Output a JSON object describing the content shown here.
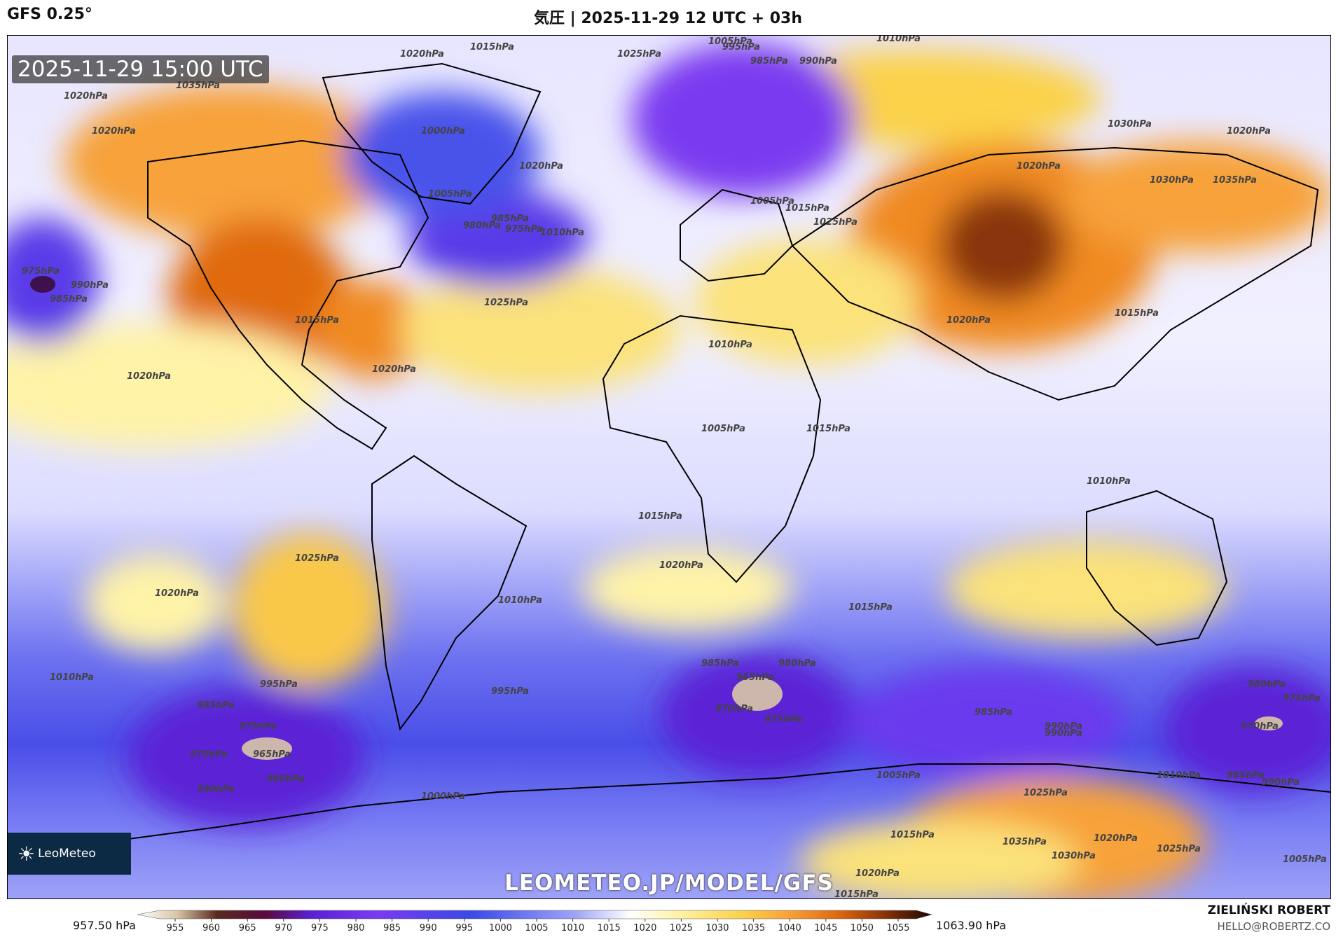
{
  "header": {
    "model": "GFS 0.25°",
    "title": "気圧 | 2025-11-29 12 UTC + 03h"
  },
  "map": {
    "valid_time": "2025-11-29 15:00 UTC",
    "watermark": "LEOMETEO.JP/MODEL/GFS",
    "logo_text": "LeoMeteo",
    "isobar_labels": [
      "1020hPa",
      "1015hPa",
      "1005hPa",
      "995hPa",
      "985hPa",
      "990hPa",
      "1010hPa",
      "1025hPa",
      "1035hPa",
      "1020hPa",
      "1020hPa",
      "1000hPa",
      "1005hPa",
      "1020hPa",
      "1030hPa",
      "1020hPa",
      "1025hPa",
      "1020hPa",
      "1030hPa",
      "1035hPa",
      "980hPa",
      "975hPa",
      "985hPa",
      "1010hPa",
      "1005hPa",
      "1015hPa",
      "975hPa",
      "985hPa",
      "990hPa",
      "1025hPa",
      "1015hPa",
      "1015hPa",
      "1020hPa",
      "1020hPa",
      "1020hPa",
      "1010hPa",
      "1005hPa",
      "1015hPa",
      "1010hPa",
      "1015hPa",
      "1025hPa",
      "1020hPa",
      "1020hPa",
      "1015hPa",
      "1010hPa",
      "1010hPa",
      "985hPa",
      "965hPa",
      "980hPa",
      "970hPa",
      "975hPa",
      "985hPa",
      "990hPa",
      "995hPa",
      "995hPa",
      "990hPa",
      "1005hPa",
      "1000hPa",
      "1010hPa",
      "975hPa",
      "970hPa",
      "965hPa",
      "980hPa",
      "985hPa",
      "990hPa",
      "980hPa",
      "975hPa",
      "970hPa",
      "985hPa",
      "990hPa",
      "1025hPa",
      "1035hPa",
      "1030hPa",
      "1020hPa",
      "1025hPa",
      "1015hPa",
      "1020hPa",
      "1015hPa",
      "1005hPa"
    ]
  },
  "legend": {
    "min_label": "957.50 hPa",
    "max_label": "1063.90 hPa",
    "ticks": [
      "955",
      "960",
      "965",
      "970",
      "975",
      "980",
      "985",
      "990",
      "995",
      "1000",
      "1005",
      "1010",
      "1015",
      "1020",
      "1025",
      "1030",
      "1035",
      "1040",
      "1045",
      "1050",
      "1055"
    ]
  },
  "author": {
    "name": "ZIELIŃSKI ROBERT",
    "email": "HELLO@ROBERTZ.CO"
  }
}
